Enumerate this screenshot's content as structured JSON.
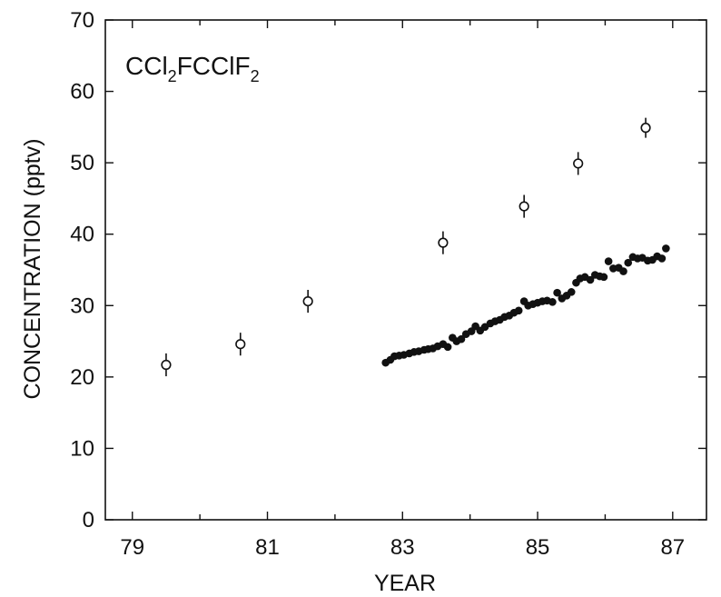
{
  "chart_data": {
    "type": "scatter",
    "title": "",
    "annotation": {
      "base": "CCl",
      "sub1": "2",
      "mid": "FCClF",
      "sub2": "2"
    },
    "xlabel": "YEAR",
    "ylabel": "CONCENTRATION (pptv)",
    "xlim": [
      78.6,
      87.5
    ],
    "ylim": [
      0,
      70
    ],
    "xticks": [
      79,
      81,
      83,
      85,
      87
    ],
    "yticks": [
      0,
      10,
      20,
      30,
      40,
      50,
      60,
      70
    ],
    "grid": false,
    "series": [
      {
        "marker": "open-circle-errorbar",
        "color": "#111111",
        "points": [
          {
            "x": 79.5,
            "y": 21.7,
            "err": 1.0
          },
          {
            "x": 80.6,
            "y": 24.6,
            "err": 1.0
          },
          {
            "x": 81.6,
            "y": 30.6,
            "err": 1.0
          },
          {
            "x": 83.6,
            "y": 38.8,
            "err": 1.0
          },
          {
            "x": 84.8,
            "y": 43.9,
            "err": 1.0
          },
          {
            "x": 85.6,
            "y": 49.9,
            "err": 1.0
          },
          {
            "x": 86.6,
            "y": 54.9,
            "err": 0.8
          }
        ]
      },
      {
        "marker": "filled-circle",
        "color": "#111111",
        "x": [
          82.75,
          82.82,
          82.88,
          82.95,
          83.02,
          83.1,
          83.17,
          83.24,
          83.32,
          83.38,
          83.45,
          83.52,
          83.6,
          83.67,
          83.74,
          83.8,
          83.87,
          83.94,
          84.02,
          84.08,
          84.15,
          84.22,
          84.3,
          84.37,
          84.44,
          84.51,
          84.58,
          84.65,
          84.72,
          84.8,
          84.86,
          84.93,
          85.0,
          85.07,
          85.14,
          85.22,
          85.29,
          85.36,
          85.43,
          85.5,
          85.57,
          85.63,
          85.7,
          85.78,
          85.85,
          85.92,
          85.98,
          86.05,
          86.12,
          86.2,
          86.27,
          86.34,
          86.41,
          86.48,
          86.55,
          86.63,
          86.7,
          86.77,
          86.84,
          86.9
        ],
        "y": [
          22.0,
          22.4,
          22.9,
          23.0,
          23.1,
          23.3,
          23.5,
          23.6,
          23.8,
          23.9,
          24.0,
          24.3,
          24.6,
          24.2,
          25.5,
          25.0,
          25.3,
          26.0,
          26.4,
          27.1,
          26.5,
          27.0,
          27.5,
          27.8,
          28.0,
          28.4,
          28.6,
          29.0,
          29.3,
          30.6,
          30.0,
          30.2,
          30.4,
          30.6,
          30.7,
          30.5,
          31.8,
          31.0,
          31.4,
          31.9,
          33.2,
          33.8,
          34.0,
          33.6,
          34.3,
          34.1,
          34.0,
          36.2,
          35.2,
          35.3,
          34.8,
          36.0,
          36.8,
          36.6,
          36.7,
          36.3,
          36.4,
          36.9,
          36.6,
          38.0
        ]
      }
    ]
  }
}
